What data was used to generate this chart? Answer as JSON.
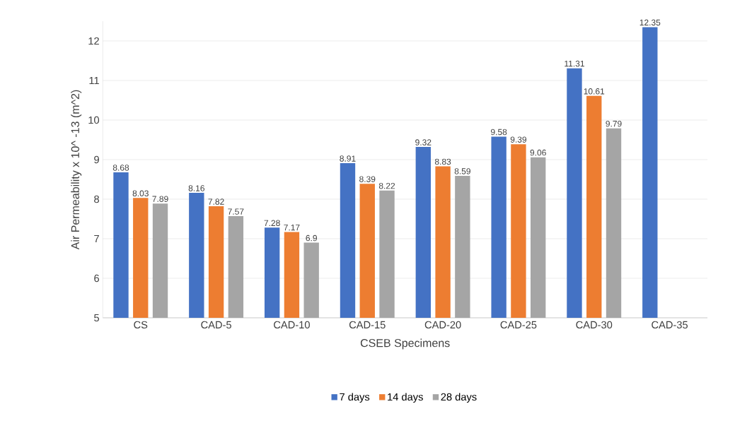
{
  "chart_data": {
    "type": "bar",
    "xlabel": "CSEB Specimens",
    "ylabel": "Air Permeability x 10^ -13 (m^2)",
    "categories": [
      "CS",
      "CAD-5",
      "CAD-10",
      "CAD-15",
      "CAD-20",
      "CAD-25",
      "CAD-30",
      "CAD-35"
    ],
    "series": [
      {
        "name": "7 days",
        "color": "#4472c4",
        "values": [
          8.68,
          8.16,
          7.28,
          8.91,
          9.32,
          9.58,
          11.31,
          12.35
        ]
      },
      {
        "name": "14 days",
        "color": "#ed7d31",
        "values": [
          8.03,
          7.82,
          7.17,
          8.39,
          8.83,
          9.39,
          10.61,
          null
        ]
      },
      {
        "name": "28 days",
        "color": "#a5a5a5",
        "values": [
          7.89,
          7.57,
          6.9,
          8.22,
          8.59,
          9.06,
          9.79,
          null
        ]
      }
    ],
    "ylim": [
      5,
      12.5
    ],
    "yticks": [
      5,
      6,
      7,
      8,
      9,
      10,
      11,
      12
    ],
    "grid": "y",
    "legend": "bottom",
    "data_labels": true
  }
}
